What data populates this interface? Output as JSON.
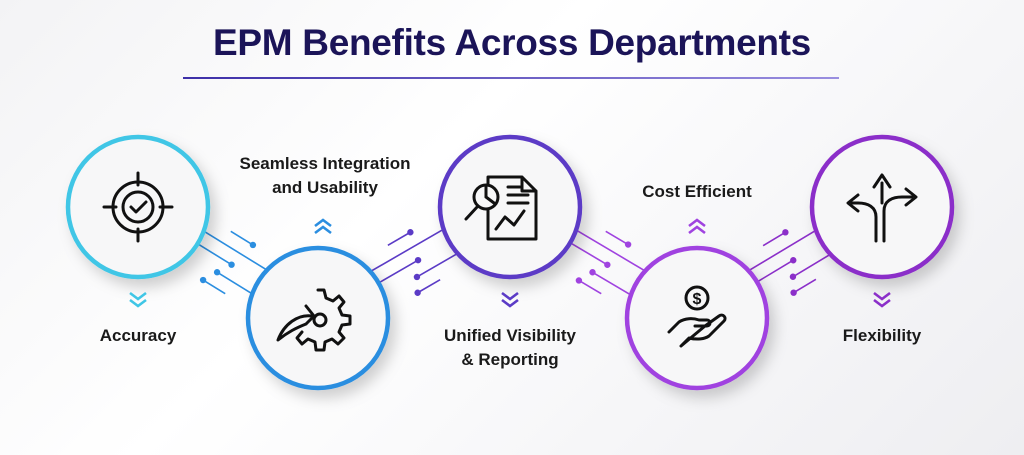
{
  "title": "EPM Benefits Across Departments",
  "steps": [
    {
      "label": "Accuracy",
      "icon": "target-check-icon",
      "color": "#3fc6e6",
      "label_position": "below"
    },
    {
      "label_line1": "Seamless Integration",
      "label_line2": "and Usability",
      "icon": "gear-arrow-icon",
      "color": "#2b8ee0",
      "label_position": "above"
    },
    {
      "label_line1": "Unified Visibility",
      "label_line2": "& Reporting",
      "icon": "report-analytics-icon",
      "color": "#5b3bc6",
      "label_position": "below"
    },
    {
      "label": "Cost Efficient",
      "icon": "hand-coin-icon",
      "color": "#a043e0",
      "label_position": "above"
    },
    {
      "label": "Flexibility",
      "icon": "split-arrows-icon",
      "color": "#8b2fc9",
      "label_position": "below"
    }
  ]
}
